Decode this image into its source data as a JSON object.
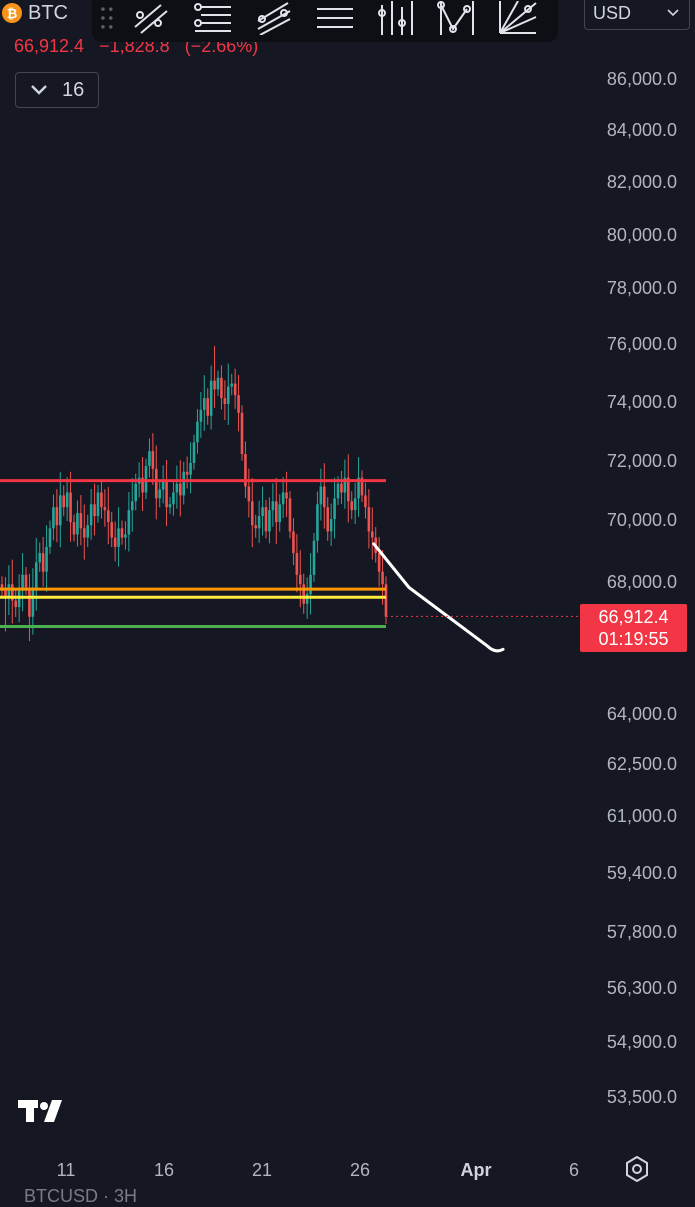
{
  "header": {
    "symbol_short": "BTC",
    "coin_badge": "₿",
    "last_price": "66,912.4",
    "change": "−1,828.8",
    "change_pct": "(−2.66%)",
    "interval_value": "16",
    "currency": "USD",
    "bottom_text": "BTCUSD · 3H"
  },
  "toolbar": {
    "tools": [
      "trend-line-tools-icon",
      "fib-retracement-icon",
      "parallel-channel-icon",
      "horizontal-lines-icon",
      "pitchfork-icon",
      "pattern-icon",
      "gann-fan-icon"
    ]
  },
  "price_label": {
    "price": "66,912.4",
    "countdown": "01:19:55"
  },
  "colors": {
    "background": "#151722",
    "up": "#26a69a",
    "down": "#ef5350",
    "resistance": "#f23645",
    "support_orange": "#ff9800",
    "support_yellow": "#ffeb3b",
    "support_green": "#4caf50",
    "projection": "#ffffff"
  },
  "chart_data": {
    "type": "candlestick",
    "y_axis_ticks": [
      "86,000.0",
      "84,000.0",
      "82,000.0",
      "80,000.0",
      "78,000.0",
      "76,000.0",
      "74,000.0",
      "72,000.0",
      "70,000.0",
      "68,000.0",
      "64,000.0",
      "62,500.0",
      "61,000.0",
      "59,400.0",
      "57,800.0",
      "56,300.0",
      "54,900.0",
      "53,500.0"
    ],
    "x_axis_ticks": [
      "11",
      "16",
      "21",
      "26",
      "Apr",
      "6"
    ],
    "last_price": 66912.4,
    "horizontal_levels": [
      {
        "color": "red",
        "price": 71300
      },
      {
        "color": "orange",
        "price": 67750
      },
      {
        "color": "yellow",
        "price": 67500
      },
      {
        "color": "green",
        "price": 66600
      }
    ],
    "projection_path": [
      [
        26.7,
        69200
      ],
      [
        28.5,
        67800
      ],
      [
        30.5,
        66900
      ],
      [
        32.5,
        66000
      ],
      [
        33.3,
        65900
      ]
    ],
    "candles_close": [
      67700,
      67500,
      67900,
      67400,
      67200,
      67700,
      68200,
      67800,
      66900,
      67800,
      68600,
      68900,
      68300,
      69100,
      69700,
      70400,
      69800,
      70800,
      70400,
      70900,
      69900,
      69500,
      70200,
      69700,
      69400,
      69800,
      70500,
      70100,
      70900,
      70400,
      70300,
      69900,
      69400,
      69100,
      69700,
      69400,
      69500,
      70300,
      70600,
      71200,
      71400,
      70900,
      71800,
      72300,
      71700,
      70700,
      71000,
      71300,
      70400,
      70500,
      70900,
      71200,
      70800,
      71600,
      71500,
      71900,
      72600,
      73300,
      73700,
      74100,
      73500,
      74700,
      74400,
      74800,
      74100,
      73900,
      74500,
      74600,
      74200,
      73600,
      72200,
      71100,
      70600,
      69800,
      69700,
      70100,
      70400,
      69600,
      70300,
      70600,
      69900,
      70500,
      70900,
      70700,
      69600,
      68900,
      68200,
      67900,
      67300,
      67600,
      68200,
      69300,
      70500,
      71100,
      70400,
      69600,
      70000,
      70700,
      71200,
      70900,
      71400,
      70600,
      70300,
      70700,
      71400,
      70800,
      70400,
      69600,
      69400,
      68900,
      68300,
      67900,
      66900
    ]
  }
}
